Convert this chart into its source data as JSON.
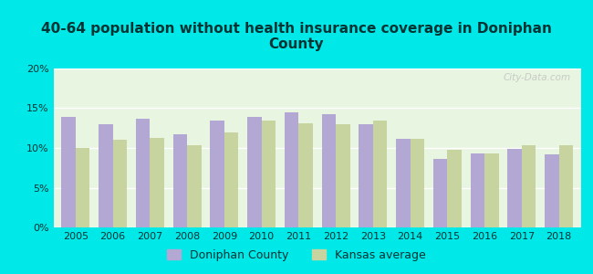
{
  "title": "40-64 population without health insurance coverage in Doniphan\nCounty",
  "years": [
    2005,
    2006,
    2007,
    2008,
    2009,
    2010,
    2011,
    2012,
    2013,
    2014,
    2015,
    2016,
    2017,
    2018
  ],
  "doniphan": [
    13.9,
    13.0,
    13.7,
    11.7,
    13.4,
    13.9,
    14.5,
    14.2,
    13.0,
    11.1,
    8.6,
    9.3,
    9.9,
    9.2
  ],
  "kansas": [
    10.0,
    11.0,
    11.3,
    10.4,
    12.0,
    13.4,
    13.1,
    13.0,
    13.4,
    11.2,
    9.8,
    9.3,
    10.4,
    10.4
  ],
  "doniphan_color": "#b3a8d4",
  "kansas_color": "#c8d4a0",
  "bg_outer": "#00e8e8",
  "bg_plot": "#e8f5e0",
  "ylim": [
    0,
    20
  ],
  "yticks": [
    0,
    5,
    10,
    15,
    20
  ],
  "ytick_labels": [
    "0%",
    "5%",
    "10%",
    "15%",
    "20%"
  ],
  "legend_doniphan": "Doniphan County",
  "legend_kansas": "Kansas average",
  "bar_width": 0.38,
  "title_color": "#003333",
  "tick_color": "#003333"
}
